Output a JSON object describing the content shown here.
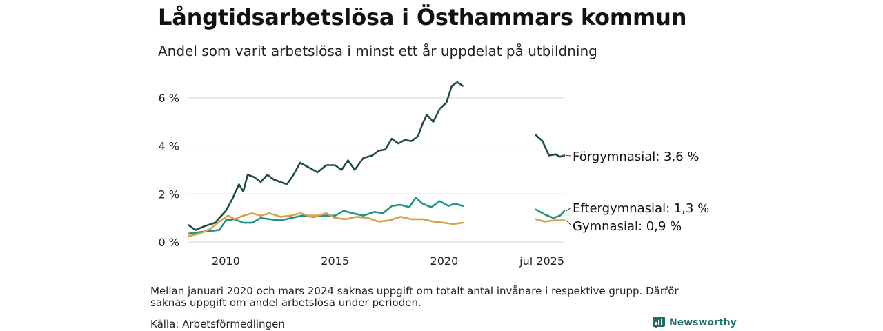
{
  "title": "Långtidsarbetslösa i Östhammars kommun",
  "subtitle": "Andel som varit arbetslösa i minst ett år uppdelat på utbildning",
  "note": "Mellan januari 2020 och mars 2024 saknas uppgift om totalt antal invånare i respektive grupp. Därför saknas uppgift om andel arbetslösa under perioden.",
  "source": "Källa: Arbetsförmedlingen",
  "logo": {
    "text": "Newsworthy",
    "icon": "bar-chart-icon",
    "color": "#1f6f62"
  },
  "chart_data": {
    "type": "line",
    "x_unit": "year",
    "xlim": [
      2008.25,
      2025.5
    ],
    "ylim": [
      0,
      7
    ],
    "yticks": [
      0,
      2,
      4,
      6
    ],
    "ytick_labels": [
      "0 %",
      "2 %",
      "4 %",
      "6 %"
    ],
    "xticks": [
      2010,
      2015,
      2020,
      2025.5
    ],
    "xtick_labels": [
      "2010",
      "2015",
      "2020",
      "jul 2025"
    ],
    "grid": true,
    "series": [
      {
        "name": "Förgymnasial",
        "end_label": "Förgymnasial: 3,6 %",
        "color": "#1e4d44",
        "segments": [
          [
            [
              2008.3,
              0.7
            ],
            [
              2008.6,
              0.5
            ],
            [
              2009.0,
              0.65
            ],
            [
              2009.5,
              0.8
            ],
            [
              2010.0,
              1.3
            ],
            [
              2010.3,
              1.8
            ],
            [
              2010.6,
              2.4
            ],
            [
              2010.8,
              2.1
            ],
            [
              2011.0,
              2.8
            ],
            [
              2011.3,
              2.7
            ],
            [
              2011.6,
              2.5
            ],
            [
              2011.9,
              2.8
            ],
            [
              2012.2,
              2.6
            ],
            [
              2012.5,
              2.5
            ],
            [
              2012.8,
              2.4
            ],
            [
              2013.1,
              2.8
            ],
            [
              2013.4,
              3.3
            ],
            [
              2013.8,
              3.1
            ],
            [
              2014.2,
              2.9
            ],
            [
              2014.6,
              3.2
            ],
            [
              2015.0,
              3.2
            ],
            [
              2015.3,
              3.0
            ],
            [
              2015.6,
              3.4
            ],
            [
              2015.9,
              3.0
            ],
            [
              2016.3,
              3.5
            ],
            [
              2016.7,
              3.6
            ],
            [
              2017.0,
              3.8
            ],
            [
              2017.3,
              3.85
            ],
            [
              2017.6,
              4.3
            ],
            [
              2017.9,
              4.1
            ],
            [
              2018.2,
              4.25
            ],
            [
              2018.5,
              4.2
            ],
            [
              2018.8,
              4.4
            ],
            [
              2019.0,
              4.9
            ],
            [
              2019.2,
              5.3
            ],
            [
              2019.5,
              5.0
            ],
            [
              2019.8,
              5.55
            ],
            [
              2020.1,
              5.8
            ],
            [
              2020.35,
              6.5
            ],
            [
              2020.6,
              6.65
            ],
            [
              2020.85,
              6.5
            ]
          ],
          [
            [
              2024.2,
              4.45
            ],
            [
              2024.5,
              4.2
            ],
            [
              2024.8,
              3.6
            ],
            [
              2025.1,
              3.65
            ],
            [
              2025.3,
              3.55
            ],
            [
              2025.5,
              3.6
            ]
          ]
        ]
      },
      {
        "name": "Eftergymnasial",
        "end_label": "Eftergymnasial: 1,3 %",
        "color": "#1e9484",
        "segments": [
          [
            [
              2008.3,
              0.35
            ],
            [
              2008.7,
              0.4
            ],
            [
              2009.2,
              0.45
            ],
            [
              2009.7,
              0.5
            ],
            [
              2010.0,
              0.9
            ],
            [
              2010.4,
              0.95
            ],
            [
              2010.8,
              0.8
            ],
            [
              2011.2,
              0.8
            ],
            [
              2011.6,
              1.0
            ],
            [
              2012.0,
              0.95
            ],
            [
              2012.5,
              0.9
            ],
            [
              2013.0,
              1.0
            ],
            [
              2013.5,
              1.1
            ],
            [
              2014.0,
              1.05
            ],
            [
              2014.5,
              1.1
            ],
            [
              2015.0,
              1.1
            ],
            [
              2015.4,
              1.3
            ],
            [
              2015.8,
              1.2
            ],
            [
              2016.3,
              1.1
            ],
            [
              2016.8,
              1.25
            ],
            [
              2017.2,
              1.2
            ],
            [
              2017.6,
              1.5
            ],
            [
              2018.0,
              1.55
            ],
            [
              2018.4,
              1.45
            ],
            [
              2018.7,
              1.85
            ],
            [
              2019.0,
              1.6
            ],
            [
              2019.4,
              1.45
            ],
            [
              2019.8,
              1.7
            ],
            [
              2020.2,
              1.5
            ],
            [
              2020.5,
              1.6
            ],
            [
              2020.85,
              1.5
            ]
          ],
          [
            [
              2024.2,
              1.35
            ],
            [
              2024.6,
              1.15
            ],
            [
              2025.0,
              1.0
            ],
            [
              2025.3,
              1.1
            ],
            [
              2025.5,
              1.3
            ]
          ]
        ]
      },
      {
        "name": "Gymnasial",
        "end_label": "Gymnasial: 0,9 %",
        "color": "#d4a24c",
        "segments": [
          [
            [
              2008.3,
              0.25
            ],
            [
              2008.8,
              0.35
            ],
            [
              2009.3,
              0.55
            ],
            [
              2009.7,
              0.85
            ],
            [
              2010.1,
              1.1
            ],
            [
              2010.4,
              0.95
            ],
            [
              2010.8,
              1.1
            ],
            [
              2011.2,
              1.2
            ],
            [
              2011.6,
              1.1
            ],
            [
              2012.0,
              1.2
            ],
            [
              2012.5,
              1.05
            ],
            [
              2013.0,
              1.1
            ],
            [
              2013.4,
              1.2
            ],
            [
              2013.8,
              1.1
            ],
            [
              2014.2,
              1.1
            ],
            [
              2014.6,
              1.2
            ],
            [
              2015.0,
              1.0
            ],
            [
              2015.5,
              0.95
            ],
            [
              2016.0,
              1.05
            ],
            [
              2016.5,
              1.0
            ],
            [
              2017.0,
              0.85
            ],
            [
              2017.5,
              0.9
            ],
            [
              2018.0,
              1.05
            ],
            [
              2018.5,
              0.95
            ],
            [
              2019.0,
              0.95
            ],
            [
              2019.5,
              0.85
            ],
            [
              2020.0,
              0.8
            ],
            [
              2020.4,
              0.75
            ],
            [
              2020.85,
              0.8
            ]
          ],
          [
            [
              2024.2,
              0.95
            ],
            [
              2024.6,
              0.85
            ],
            [
              2025.0,
              0.9
            ],
            [
              2025.5,
              0.9
            ]
          ]
        ]
      }
    ]
  }
}
